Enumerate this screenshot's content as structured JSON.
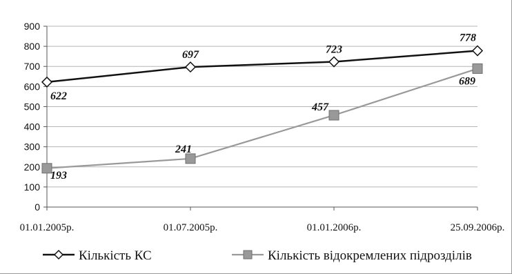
{
  "chart_data": {
    "type": "line",
    "categories": [
      "01.01.2005р.",
      "01.07.2005р.",
      "01.01.2006р.",
      "25.09.2006р."
    ],
    "ylim": [
      0,
      900
    ],
    "yticks": [
      0,
      100,
      200,
      300,
      400,
      500,
      600,
      700,
      800,
      900
    ],
    "grid": true,
    "legend_position": "bottom",
    "series": [
      {
        "name": "Кількість КС",
        "values": [
          622,
          697,
          723,
          778
        ],
        "labels": [
          "622",
          "697",
          "723",
          "778"
        ],
        "color": "#111111",
        "marker": "diamond-open"
      },
      {
        "name": "Кількість відокремлених підрозділів",
        "values": [
          193,
          241,
          457,
          689
        ],
        "labels": [
          "193",
          "241",
          "457",
          "689"
        ],
        "color": "#999999",
        "marker": "square-filled"
      }
    ]
  }
}
